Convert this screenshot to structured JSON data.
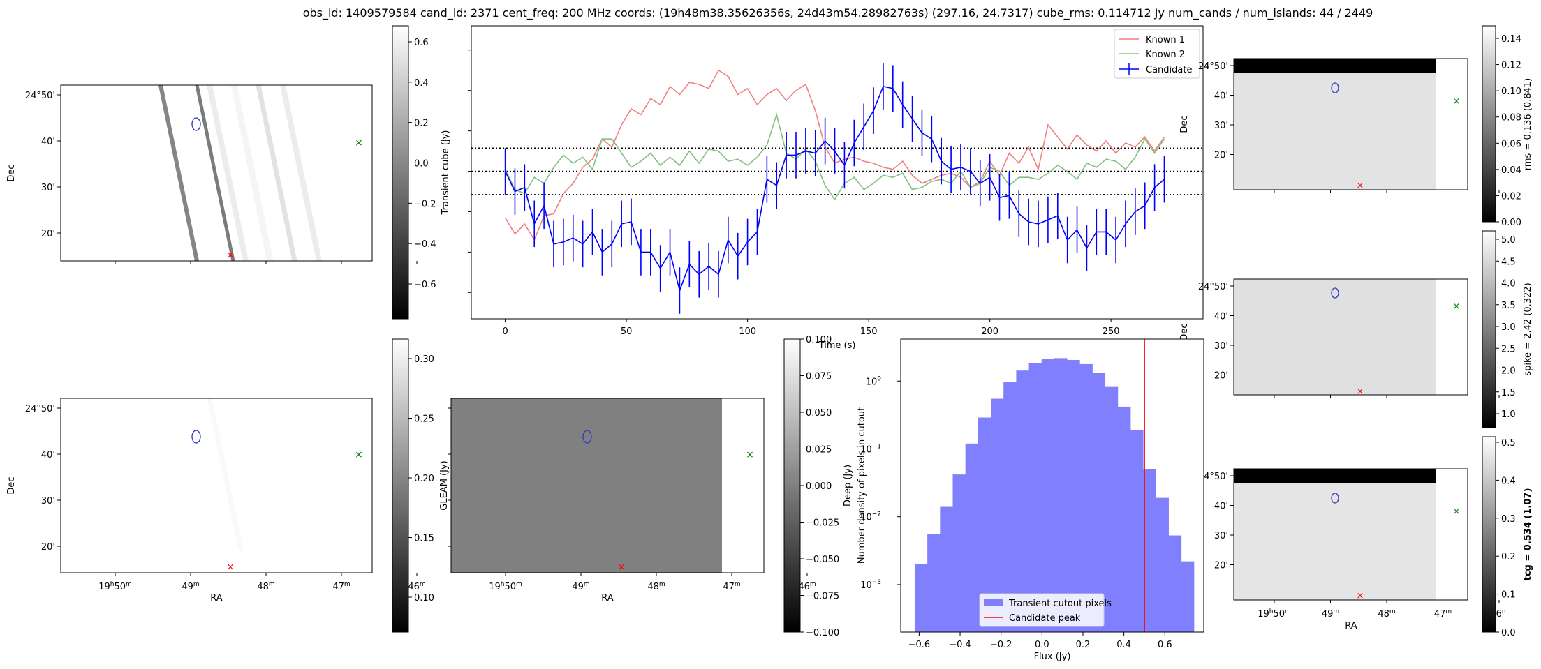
{
  "title": "obs_id: 1409579584 cand_id: 2371 cent_freq: 200 MHz coords: (19h48m38.35626356s, 24d43m54.28982763s) (297.16, 24.7317) cube_rms: 0.114712 Jy num_cands / num_islands: 44 / 2449",
  "colors": {
    "known1": "#f08080",
    "known2": "#80c080",
    "candidate": "#0000ff",
    "hist": "#8080ff",
    "peak": "#ff0000",
    "marker_green": "#008000",
    "marker_red": "#ff0000",
    "contour": "#3333cc"
  },
  "sky_axes": {
    "dec_label": "Dec",
    "ra_label": "RA",
    "dec_ticks": [
      "24°50'",
      "40'",
      "30'",
      "20'"
    ],
    "ra_ticks": [
      {
        "h": "19",
        "m": "50"
      },
      {
        "h": "",
        "m": "49"
      },
      {
        "h": "",
        "m": "48"
      },
      {
        "h": "",
        "m": "47"
      },
      {
        "h": "",
        "m": "46"
      }
    ]
  },
  "colorbars": {
    "transient": {
      "label": "Transient cube (Jy)",
      "ticks": [
        "0.6",
        "0.4",
        "0.2",
        "0.0",
        "−0.2",
        "−0.4",
        "−0.6"
      ]
    },
    "deep": {
      "label": "Deep (Jy)",
      "ticks": [
        "0.30",
        "0.25",
        "0.20",
        "0.15",
        "0.10"
      ]
    },
    "gleam": {
      "label": "GLEAM (Jy)",
      "ticks": [
        "0.100",
        "0.075",
        "0.050",
        "0.025",
        "0.000",
        "−0.025",
        "−0.050",
        "−0.075",
        "−0.100"
      ]
    },
    "rms": {
      "label": "rms = 0.136 (0.841)",
      "ticks": [
        "0.14",
        "0.12",
        "0.10",
        "0.08",
        "0.06",
        "0.04",
        "0.02",
        "0.00"
      ]
    },
    "spike": {
      "label": "spike = 2.42 (0.322)",
      "ticks": [
        "5.0",
        "4.5",
        "4.0",
        "3.5",
        "3.0",
        "2.5",
        "2.0",
        "1.5",
        "1.0"
      ]
    },
    "tcg": {
      "label": "tcg = 0.534 (1.07)",
      "ticks": [
        "0.5",
        "0.4",
        "0.3",
        "0.2",
        "0.1",
        "0.0"
      ]
    }
  },
  "chart_data": [
    {
      "type": "line",
      "title": "",
      "xlabel": "Time (s)",
      "ylabel": "",
      "xlim": [
        -14,
        288
      ],
      "ylim": [
        -0.73,
        0.72
      ],
      "x_ticks": [
        "0",
        "50",
        "100",
        "150",
        "200",
        "250"
      ],
      "hlines": [
        0.115,
        0.0,
        -0.115
      ],
      "series": [
        {
          "name": "Known 1",
          "x": [
            0,
            4,
            8,
            12,
            16,
            20,
            24,
            28,
            32,
            36,
            40,
            44,
            48,
            52,
            56,
            60,
            64,
            68,
            72,
            76,
            80,
            84,
            88,
            92,
            96,
            100,
            104,
            108,
            112,
            116,
            120,
            124,
            128,
            132,
            136,
            140,
            144,
            148,
            152,
            156,
            160,
            164,
            168,
            172,
            176,
            180,
            184,
            188,
            192,
            196,
            200,
            204,
            208,
            212,
            216,
            220,
            224,
            228,
            232,
            236,
            240,
            244,
            248,
            252,
            256,
            260,
            264,
            268,
            272
          ],
          "y": [
            -0.23,
            -0.31,
            -0.26,
            -0.34,
            -0.22,
            -0.21,
            -0.11,
            -0.06,
            0.02,
            0.06,
            0.16,
            0.12,
            0.23,
            0.31,
            0.28,
            0.36,
            0.33,
            0.42,
            0.38,
            0.44,
            0.43,
            0.41,
            0.5,
            0.47,
            0.38,
            0.41,
            0.33,
            0.38,
            0.41,
            0.35,
            0.4,
            0.43,
            0.3,
            0.12,
            0.04,
            0.06,
            0.07,
            0.05,
            0.04,
            0.02,
            0.01,
            0.05,
            -0.02,
            -0.06,
            -0.04,
            -0.02,
            -0.01,
            -0.03,
            -0.08,
            -0.05,
            0.05,
            -0.02,
            0.09,
            0.04,
            0.12,
            0.01,
            0.23,
            0.17,
            0.11,
            0.18,
            0.13,
            0.1,
            0.15,
            0.09,
            0.14,
            0.12,
            0.17,
            0.1,
            0.17
          ]
        },
        {
          "name": "Known 2",
          "x": [
            0,
            4,
            8,
            12,
            16,
            20,
            24,
            28,
            32,
            36,
            40,
            44,
            48,
            52,
            56,
            60,
            64,
            68,
            72,
            76,
            80,
            84,
            88,
            92,
            96,
            100,
            104,
            108,
            112,
            116,
            120,
            124,
            128,
            132,
            136,
            140,
            144,
            148,
            152,
            156,
            160,
            164,
            168,
            172,
            176,
            180,
            184,
            188,
            192,
            196,
            200,
            204,
            208,
            212,
            216,
            220,
            224,
            228,
            232,
            236,
            240,
            244,
            248,
            252,
            256,
            260,
            264,
            268,
            272
          ],
          "y": [
            0.01,
            -0.09,
            -0.11,
            -0.03,
            -0.06,
            0.02,
            0.08,
            0.04,
            0.07,
            0.01,
            0.16,
            0.16,
            0.09,
            0.02,
            0.05,
            0.09,
            0.03,
            0.07,
            0.03,
            0.1,
            0.04,
            0.11,
            0.1,
            0.05,
            0.06,
            0.03,
            0.07,
            0.13,
            0.28,
            0.09,
            0.06,
            0.11,
            0.05,
            -0.07,
            -0.14,
            -0.06,
            -0.03,
            -0.09,
            -0.06,
            -0.02,
            -0.03,
            -0.01,
            -0.09,
            -0.08,
            -0.05,
            -0.04,
            -0.06,
            0.0,
            -0.08,
            -0.06,
            0.02,
            0.0,
            -0.07,
            -0.03,
            -0.03,
            -0.04,
            -0.01,
            0.03,
            0.0,
            -0.04,
            0.04,
            0.02,
            0.06,
            0.05,
            0.01,
            0.07,
            0.16,
            0.09,
            0.16
          ]
        },
        {
          "name": "Candidate",
          "x": [
            0,
            4,
            8,
            12,
            16,
            20,
            24,
            28,
            32,
            36,
            40,
            44,
            48,
            52,
            56,
            60,
            64,
            68,
            72,
            76,
            80,
            84,
            88,
            92,
            96,
            100,
            104,
            108,
            112,
            116,
            120,
            124,
            128,
            132,
            136,
            140,
            144,
            148,
            152,
            156,
            160,
            164,
            168,
            172,
            176,
            180,
            184,
            188,
            192,
            196,
            200,
            204,
            208,
            212,
            216,
            220,
            224,
            228,
            232,
            236,
            240,
            244,
            248,
            252,
            256,
            260,
            264,
            268,
            272
          ],
          "y": [
            0.0,
            -0.1,
            -0.08,
            -0.26,
            -0.17,
            -0.36,
            -0.35,
            -0.33,
            -0.36,
            -0.3,
            -0.4,
            -0.36,
            -0.26,
            -0.25,
            -0.4,
            -0.4,
            -0.48,
            -0.4,
            -0.59,
            -0.46,
            -0.51,
            -0.47,
            -0.51,
            -0.34,
            -0.42,
            -0.35,
            -0.3,
            -0.04,
            -0.07,
            0.08,
            0.08,
            0.1,
            0.09,
            0.15,
            0.1,
            0.03,
            0.14,
            0.22,
            0.3,
            0.42,
            0.41,
            0.33,
            0.26,
            0.19,
            0.16,
            0.05,
            0.01,
            0.02,
            0.0,
            -0.06,
            -0.03,
            -0.13,
            -0.12,
            -0.21,
            -0.25,
            -0.26,
            -0.24,
            -0.22,
            -0.34,
            -0.29,
            -0.38,
            -0.3,
            -0.3,
            -0.34,
            -0.26,
            -0.2,
            -0.17,
            -0.08,
            -0.04
          ]
        }
      ],
      "candidate_error": 0.115,
      "legend": [
        "Known 1",
        "Known 2",
        "Candidate"
      ],
      "legend_position": "top-right"
    },
    {
      "type": "bar",
      "title": "",
      "xlabel": "Flux (Jy)",
      "ylabel": "Number density of pixels in cutout",
      "xlim": [
        -0.69,
        0.79
      ],
      "ylim_log10": [
        -3.7,
        0.62
      ],
      "x_ticks": [
        "−0.6",
        "−0.4",
        "−0.2",
        "0.0",
        "0.2",
        "0.4",
        "0.6"
      ],
      "y_ticks": [
        "10",
        "10",
        "10",
        "10"
      ],
      "y_tick_exponents": [
        "0",
        "−1",
        "−2",
        "−3"
      ],
      "bin_edges": [
        -0.622,
        -0.56,
        -0.498,
        -0.436,
        -0.374,
        -0.312,
        -0.25,
        -0.188,
        -0.126,
        -0.064,
        -0.002,
        0.06,
        0.122,
        0.184,
        0.246,
        0.308,
        0.37,
        0.432,
        0.494,
        0.556,
        0.618,
        0.68,
        0.742
      ],
      "density": [
        0.002,
        0.0055,
        0.014,
        0.042,
        0.12,
        0.29,
        0.55,
        0.96,
        1.43,
        1.85,
        2.12,
        2.18,
        2.05,
        1.78,
        1.32,
        0.82,
        0.42,
        0.19,
        0.05,
        0.019,
        0.0053,
        0.0022
      ],
      "candidate_peak": 0.5,
      "legend": [
        "Transient cutout pixels",
        "Candidate peak"
      ],
      "legend_position": "bottom-center"
    }
  ]
}
